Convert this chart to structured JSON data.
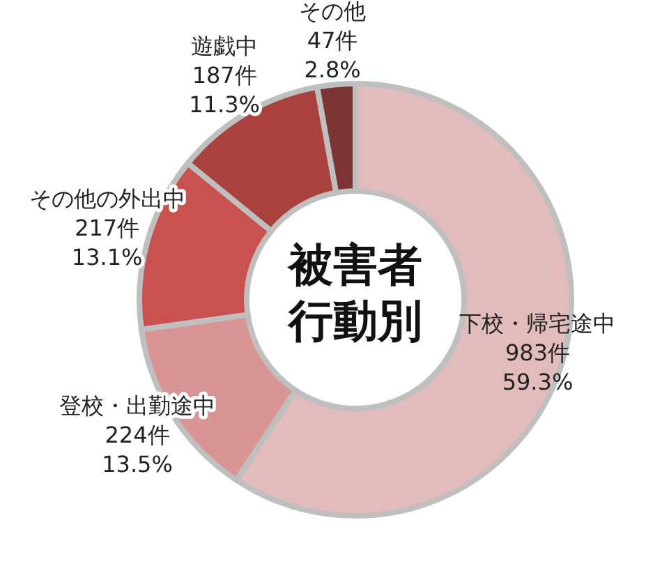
{
  "chart_data": {
    "type": "donut",
    "title": "被害者行動別",
    "categories": [
      "下校・帰宅途中",
      "登校・出勤途中",
      "その他の外出中",
      "遊戯中",
      "その他"
    ],
    "values": [
      983,
      224,
      217,
      187,
      47
    ],
    "value_labels": [
      "983件\n59.3%",
      "224件\n13.5%",
      "217件\n13.1%",
      "187件\n11.3%",
      "47件\n2.8%"
    ],
    "colors": [
      "#e2bcbc",
      "#d99494",
      "#c9514f",
      "#a9423f",
      "#7b3431"
    ]
  }
}
